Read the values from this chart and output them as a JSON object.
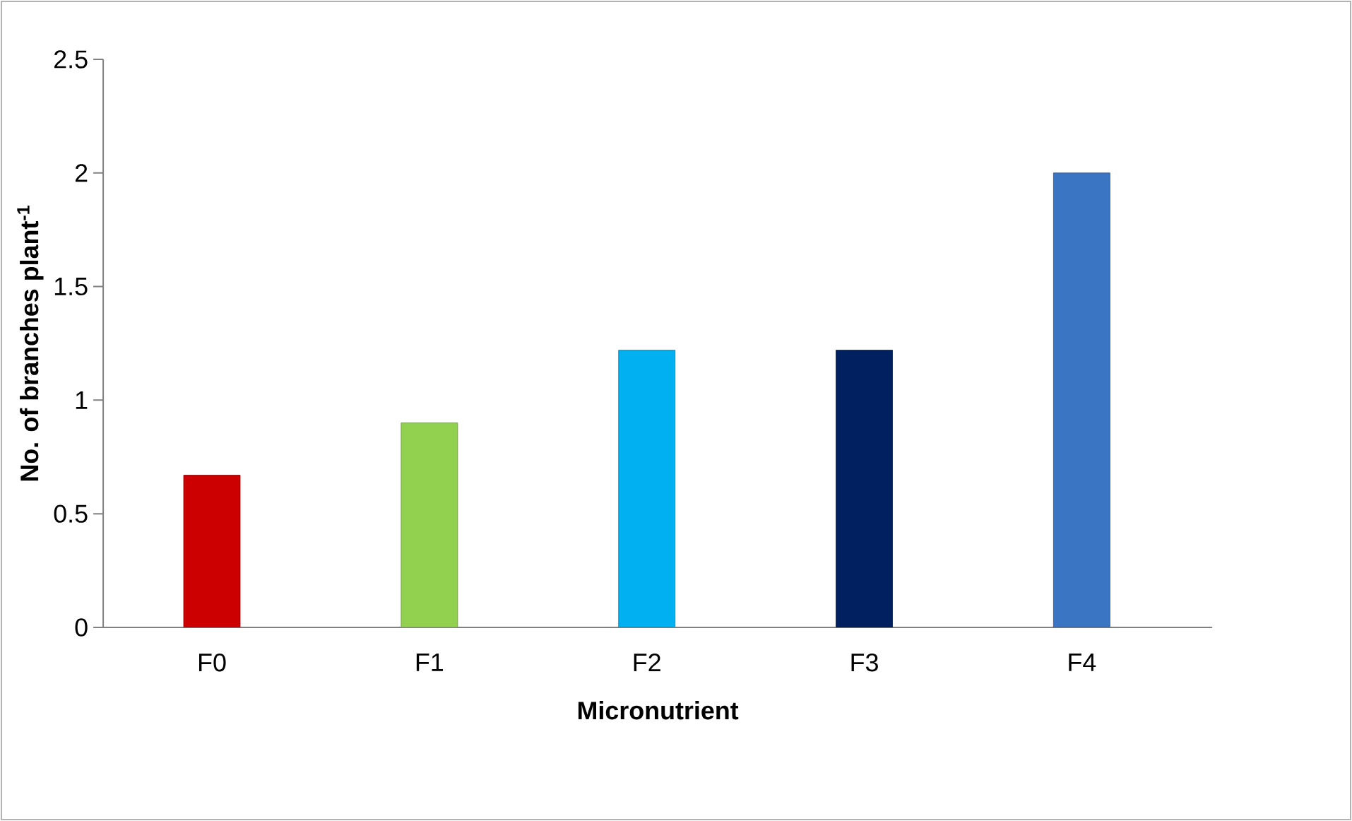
{
  "chart_data": {
    "type": "bar",
    "xlabel": "Micronutrient",
    "ylabel": "No. of branches plant$^{-1}$",
    "categories": [
      "F0",
      "F1",
      "F2",
      "F3",
      "F4"
    ],
    "values": [
      0.67,
      0.9,
      1.22,
      1.22,
      2.0
    ],
    "colors": [
      "#cc0000",
      "#92d050",
      "#00b0f0",
      "#002060",
      "#3a75c4"
    ],
    "ylim": [
      0,
      2.5
    ],
    "yticks": [
      0,
      0.5,
      1,
      1.5,
      2,
      2.5
    ]
  }
}
